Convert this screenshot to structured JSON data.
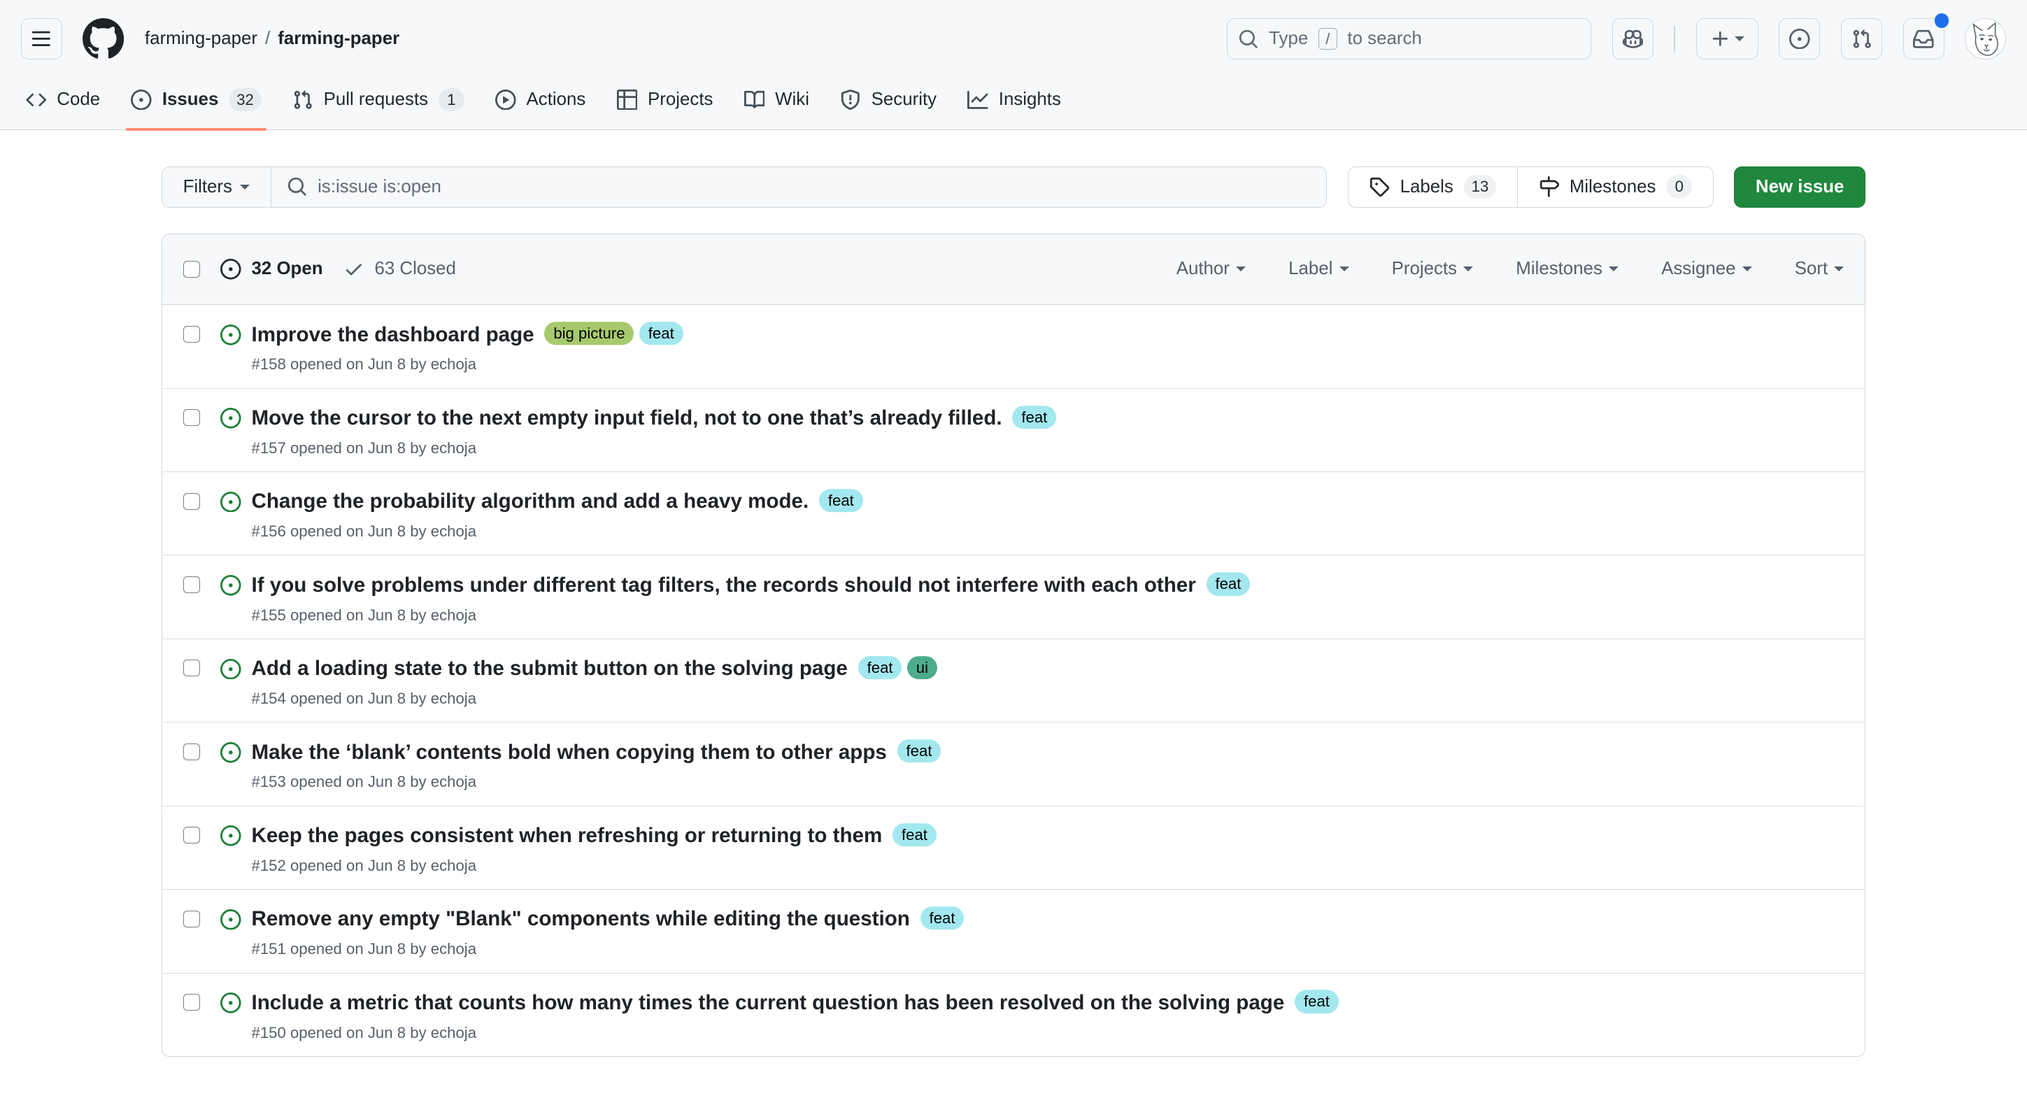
{
  "header": {
    "breadcrumb": {
      "owner": "farming-paper",
      "separator": "/",
      "repo": "farming-paper"
    },
    "search": {
      "prefix": "Type",
      "key": "/",
      "suffix": "to search"
    }
  },
  "nav": {
    "tabs": [
      {
        "label": "Code"
      },
      {
        "label": "Issues",
        "count": "32",
        "active": true
      },
      {
        "label": "Pull requests",
        "count": "1"
      },
      {
        "label": "Actions"
      },
      {
        "label": "Projects"
      },
      {
        "label": "Wiki"
      },
      {
        "label": "Security"
      },
      {
        "label": "Insights"
      }
    ]
  },
  "filter_bar": {
    "filters_button": "Filters",
    "query": "is:issue is:open",
    "labels_button": {
      "label": "Labels",
      "count": "13"
    },
    "milestones_button": {
      "label": "Milestones",
      "count": "0"
    },
    "new_issue_button": "New issue"
  },
  "list_header": {
    "open": "32 Open",
    "closed": "63 Closed",
    "filters": [
      "Author",
      "Label",
      "Projects",
      "Milestones",
      "Assignee",
      "Sort"
    ]
  },
  "issues": [
    {
      "title": "Improve the dashboard page",
      "labels": [
        {
          "text": "big picture",
          "bg": "#a7c96d",
          "fg": "#000000"
        },
        {
          "text": "feat",
          "bg": "#a2e8ee",
          "fg": "#000000"
        }
      ],
      "meta": "#158 opened on Jun 8 by echoja"
    },
    {
      "title": "Move the cursor to the next empty input field, not to one that’s already filled.",
      "labels": [
        {
          "text": "feat",
          "bg": "#a2e8ee",
          "fg": "#000000"
        }
      ],
      "meta": "#157 opened on Jun 8 by echoja"
    },
    {
      "title": "Change the probability algorithm and add a heavy mode.",
      "labels": [
        {
          "text": "feat",
          "bg": "#a2e8ee",
          "fg": "#000000"
        }
      ],
      "meta": "#156 opened on Jun 8 by echoja"
    },
    {
      "title": "If you solve problems under different tag filters, the records should not interfere with each other",
      "labels": [
        {
          "text": "feat",
          "bg": "#a2e8ee",
          "fg": "#000000"
        }
      ],
      "meta": "#155 opened on Jun 8 by echoja"
    },
    {
      "title": "Add a loading state to the submit button on the solving page",
      "labels": [
        {
          "text": "feat",
          "bg": "#a2e8ee",
          "fg": "#000000"
        },
        {
          "text": "ui",
          "bg": "#4dac8c",
          "fg": "#000000"
        }
      ],
      "meta": "#154 opened on Jun 8 by echoja"
    },
    {
      "title": "Make the ‘blank’ contents bold when copying them to other apps",
      "labels": [
        {
          "text": "feat",
          "bg": "#a2e8ee",
          "fg": "#000000"
        }
      ],
      "meta": "#153 opened on Jun 8 by echoja"
    },
    {
      "title": "Keep the pages consistent when refreshing or returning to them",
      "labels": [
        {
          "text": "feat",
          "bg": "#a2e8ee",
          "fg": "#000000"
        }
      ],
      "meta": "#152 opened on Jun 8 by echoja"
    },
    {
      "title": "Remove any empty \"Blank\" components while editing the question",
      "labels": [
        {
          "text": "feat",
          "bg": "#a2e8ee",
          "fg": "#000000"
        }
      ],
      "meta": "#151 opened on Jun 8 by echoja"
    },
    {
      "title": "Include a metric that counts how many times the current question has been resolved on the solving page",
      "labels": [
        {
          "text": "feat",
          "bg": "#a2e8ee",
          "fg": "#000000"
        }
      ],
      "meta": "#150 opened on Jun 8 by echoja"
    }
  ],
  "colors": {
    "header_bg": "#f6f8fa",
    "border": "#d0d7de",
    "primary_text": "#1f2328",
    "muted_text": "#57606a",
    "open_issue_icon": "#1a7f37",
    "new_issue_button": "#1f883d",
    "active_tab_underline": "#fd8c73",
    "notification_dot": "#1f6feb"
  }
}
